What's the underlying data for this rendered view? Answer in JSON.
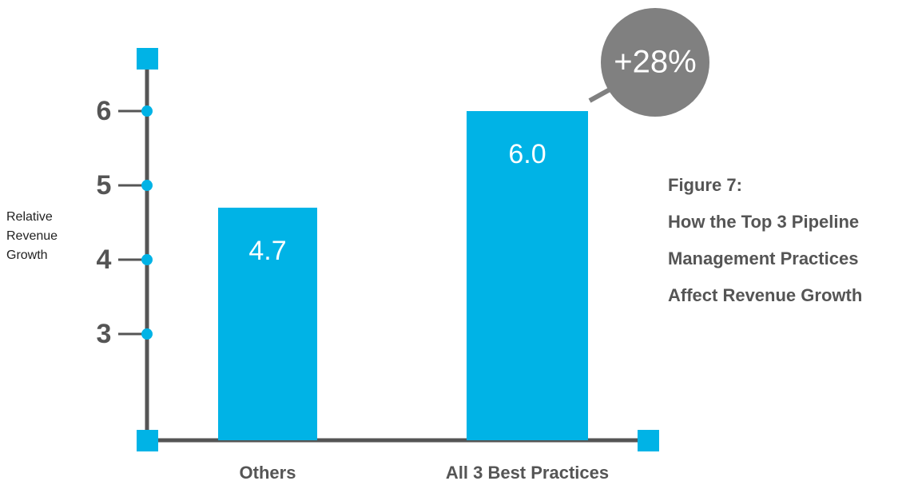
{
  "chart_data": {
    "type": "bar",
    "title": [
      "Figure 7:",
      "How the Top 3 Pipeline",
      "Management Practices",
      "Affect Revenue Growth"
    ],
    "ylabel": "Relative Revenue Growth",
    "categories": [
      "Others",
      "All 3 Best Practices"
    ],
    "values": [
      4.7,
      6.0
    ],
    "value_labels": [
      "4.7",
      "6.0"
    ],
    "color": "#00b3e6",
    "ylim": [
      1.57,
      6.71
    ],
    "yticks": [
      3,
      4,
      5,
      6
    ],
    "annotation": "+28%"
  }
}
